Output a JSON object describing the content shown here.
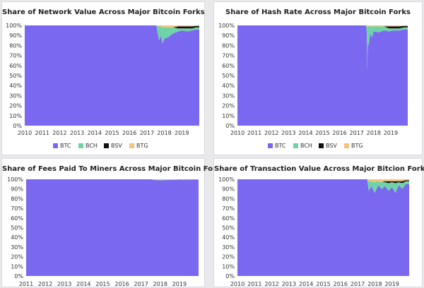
{
  "colors": {
    "BTC": "#7b68f0",
    "BCH": "#6fd3a8",
    "BSV": "#111111",
    "BTG": "#f5c27a"
  },
  "chart_data": [
    {
      "type": "area",
      "title": "Share of Network Value Across Major Bitcoin Forks",
      "x_ticks": [
        "2010",
        "2011",
        "2012",
        "2013",
        "2014",
        "2015",
        "2016",
        "2017",
        "2018",
        "2019"
      ],
      "y_ticks": [
        "0%",
        "10%",
        "20%",
        "30%",
        "40%",
        "50%",
        "60%",
        "70%",
        "80%",
        "90%",
        "100%"
      ],
      "ylim": [
        0,
        100
      ],
      "legend": [
        "BTC",
        "BCH",
        "BSV",
        "BTG"
      ],
      "legend_position": "bottom",
      "x": [
        2010,
        2017.55,
        2017.6,
        2017.7,
        2017.8,
        2017.9,
        2018.0,
        2018.2,
        2018.5,
        2018.8,
        2019.0,
        2019.3,
        2019.6,
        2019.8
      ],
      "series": [
        {
          "name": "BTC",
          "values": [
            100,
            100,
            94,
            85,
            90,
            82,
            87,
            88,
            92,
            94,
            95,
            94,
            95,
            96
          ]
        },
        {
          "name": "BCH",
          "values": [
            0,
            0,
            5,
            14,
            9,
            16,
            11,
            10,
            6,
            3,
            2,
            3,
            2,
            2
          ]
        },
        {
          "name": "BSV",
          "values": [
            0,
            0,
            0,
            0,
            0,
            0,
            0,
            0,
            0,
            2,
            2,
            2,
            2,
            1.5
          ]
        },
        {
          "name": "BTG",
          "values": [
            0,
            0,
            1,
            1,
            1,
            2,
            2,
            2,
            2,
            1,
            1,
            1,
            1,
            0.5
          ]
        }
      ]
    },
    {
      "type": "area",
      "title": "Share of Hash Rate Across Major Bitcoin Forks",
      "x_ticks": [
        "2010",
        "2011",
        "2012",
        "2013",
        "2014",
        "2015",
        "2016",
        "2017",
        "2018",
        "2019"
      ],
      "y_ticks": [
        "0%",
        "10%",
        "20%",
        "30%",
        "40%",
        "50%",
        "60%",
        "70%",
        "80%",
        "90%",
        "100%"
      ],
      "ylim": [
        0,
        100
      ],
      "legend": [
        "BTC",
        "BCH",
        "BSV",
        "BTG"
      ],
      "legend_position": "bottom",
      "x": [
        2010,
        2017.55,
        2017.6,
        2017.62,
        2017.65,
        2017.7,
        2017.8,
        2017.9,
        2018.0,
        2018.3,
        2018.6,
        2018.9,
        2019.2,
        2019.5,
        2019.8
      ],
      "series": [
        {
          "name": "BTC",
          "values": [
            100,
            100,
            92,
            55,
            85,
            80,
            92,
            88,
            94,
            93,
            95,
            94,
            95,
            95,
            96
          ]
        },
        {
          "name": "BCH",
          "values": [
            0,
            0,
            7,
            44,
            14,
            19,
            7,
            11,
            5,
            6,
            4,
            3,
            2,
            2,
            2
          ]
        },
        {
          "name": "BSV",
          "values": [
            0,
            0,
            0,
            0,
            0,
            0,
            0,
            0,
            0,
            0,
            0,
            2,
            2,
            2,
            1.5
          ]
        },
        {
          "name": "BTG",
          "values": [
            0,
            0,
            1,
            1,
            1,
            1,
            1,
            1,
            1,
            1,
            1,
            1,
            1,
            1,
            0.5
          ]
        }
      ]
    },
    {
      "type": "area",
      "title": "Share of Fees Paid To Miners Across Major Bitcoin Forks",
      "x_ticks": [
        "2011",
        "2012",
        "2013",
        "2014",
        "2015",
        "2016",
        "2017",
        "2018",
        "2019"
      ],
      "y_ticks": [
        "0%",
        "10%",
        "20%",
        "30%",
        "40%",
        "50%",
        "60%",
        "70%",
        "80%",
        "90%",
        "100%"
      ],
      "ylim": [
        0,
        100
      ],
      "x": [
        2011,
        2017.55,
        2017.7,
        2018.0,
        2018.3,
        2018.6,
        2019.0,
        2019.4,
        2019.8
      ],
      "series": [
        {
          "name": "BTC",
          "values": [
            100,
            100,
            99.3,
            99,
            99.2,
            99.5,
            99.6,
            99.7,
            99.8
          ]
        },
        {
          "name": "BCH",
          "values": [
            0,
            0,
            0.6,
            0.8,
            0.6,
            0.4,
            0.3,
            0.2,
            0.1
          ]
        },
        {
          "name": "BSV",
          "values": [
            0,
            0,
            0,
            0,
            0,
            0,
            0.05,
            0.05,
            0.05
          ]
        },
        {
          "name": "BTG",
          "values": [
            0,
            0,
            0.1,
            0.2,
            0.2,
            0.1,
            0.05,
            0.05,
            0.05
          ]
        }
      ]
    },
    {
      "type": "area",
      "title": "Share of Transaction Value Across Major Bitcion Forks",
      "x_ticks": [
        "2010",
        "2011",
        "2012",
        "2013",
        "2014",
        "2015",
        "2016",
        "2017",
        "2018",
        "2019"
      ],
      "y_ticks": [
        "0%",
        "10%",
        "20%",
        "30%",
        "40%",
        "50%",
        "60%",
        "70%",
        "80%",
        "90%",
        "100%"
      ],
      "ylim": [
        0,
        100
      ],
      "x": [
        2010,
        2017.55,
        2017.65,
        2017.8,
        2018.0,
        2018.2,
        2018.4,
        2018.6,
        2018.8,
        2019.0,
        2019.2,
        2019.4,
        2019.6,
        2019.8
      ],
      "series": [
        {
          "name": "BTC",
          "values": [
            100,
            100,
            88,
            93,
            86,
            94,
            90,
            93,
            88,
            92,
            86,
            94,
            90,
            95
          ]
        },
        {
          "name": "BCH",
          "values": [
            0,
            0,
            10,
            5,
            11,
            4,
            7,
            4,
            8,
            5,
            10,
            3,
            6,
            3
          ]
        },
        {
          "name": "BSV",
          "values": [
            0,
            0,
            0,
            0,
            0,
            0,
            0,
            1,
            2,
            1,
            2,
            1,
            2,
            1
          ]
        },
        {
          "name": "BTG",
          "values": [
            0,
            0,
            2,
            2,
            3,
            2,
            3,
            2,
            2,
            2,
            2,
            2,
            2,
            1
          ]
        }
      ]
    }
  ]
}
